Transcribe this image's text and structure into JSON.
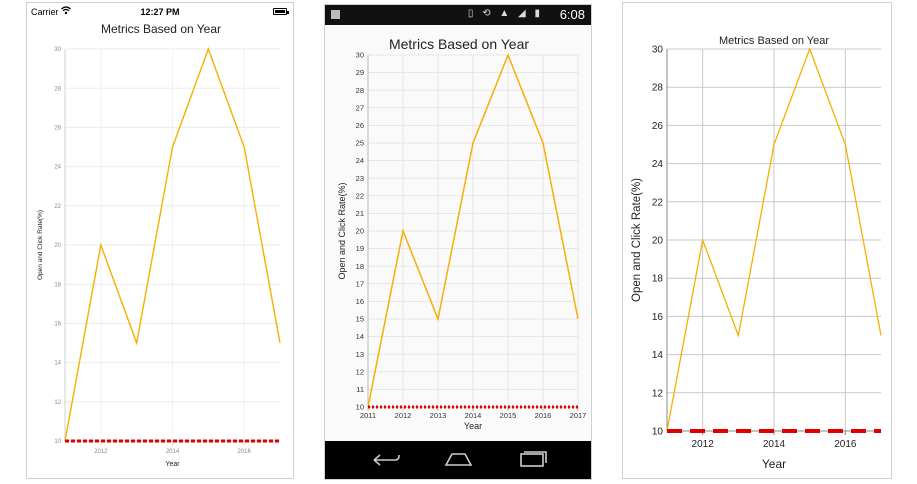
{
  "chart_data": [
    {
      "type": "line",
      "platform": "ios",
      "title": "Metrics Based on Year",
      "xlabel": "Year",
      "ylabel": "Open and Click Rate(%)",
      "x": [
        2011,
        2012,
        2013,
        2014,
        2015,
        2016,
        2017
      ],
      "values": [
        10,
        20,
        15,
        25,
        30,
        25,
        15
      ],
      "xlim": [
        2011,
        2017
      ],
      "ylim": [
        10,
        30
      ],
      "x_ticks": [
        "2012",
        "2014",
        "2016"
      ],
      "y_ticks": [
        "10",
        "12",
        "14",
        "16",
        "18",
        "20",
        "22",
        "24",
        "26",
        "28",
        "30"
      ],
      "line_color": "#f5b000",
      "strip_line_value": 10,
      "strip_line_color": "#e00000",
      "grid": true
    },
    {
      "type": "line",
      "platform": "android",
      "title": "Metrics Based on Year",
      "xlabel": "Year",
      "ylabel": "Open and Click Rate(%)",
      "x": [
        2011,
        2012,
        2013,
        2014,
        2015,
        2016,
        2017
      ],
      "values": [
        10,
        20,
        15,
        25,
        30,
        25,
        15
      ],
      "xlim": [
        2011,
        2017
      ],
      "ylim": [
        10,
        30
      ],
      "x_ticks": [
        "2011",
        "2012",
        "2013",
        "2014",
        "2015",
        "2016",
        "2017"
      ],
      "y_ticks": [
        "10",
        "11",
        "12",
        "13",
        "14",
        "15",
        "16",
        "17",
        "18",
        "19",
        "20",
        "21",
        "22",
        "23",
        "24",
        "25",
        "26",
        "27",
        "28",
        "29",
        "30"
      ],
      "line_color": "#f5b000",
      "strip_line_value": 10,
      "strip_line_color": "#e00000",
      "grid": true
    },
    {
      "type": "line",
      "platform": "uwp",
      "title": "Metrics Based on Year",
      "xlabel": "Year",
      "ylabel": "Open and Click Rate(%)",
      "x": [
        2011,
        2012,
        2013,
        2014,
        2015,
        2016,
        2017
      ],
      "values": [
        10,
        20,
        15,
        25,
        30,
        25,
        15
      ],
      "xlim": [
        2011,
        2017
      ],
      "ylim": [
        10,
        30
      ],
      "x_ticks": [
        "2012",
        "2014",
        "2016"
      ],
      "y_ticks": [
        "10",
        "12",
        "14",
        "16",
        "18",
        "20",
        "22",
        "24",
        "26",
        "28",
        "30"
      ],
      "line_color": "#f5b000",
      "strip_line_value": 10,
      "strip_line_color": "#e00000",
      "grid": true
    }
  ],
  "ios_status": {
    "carrier": "Carrier",
    "time": "12:27 PM",
    "wifi": "wifi-icon",
    "battery": "battery-icon"
  },
  "android_status": {
    "time": "6:08",
    "icons": "vibrate-icon sync-icon signal-icon battery-icon"
  },
  "android_nav": {
    "back": "back-icon",
    "home": "home-icon",
    "recents": "recents-icon"
  }
}
